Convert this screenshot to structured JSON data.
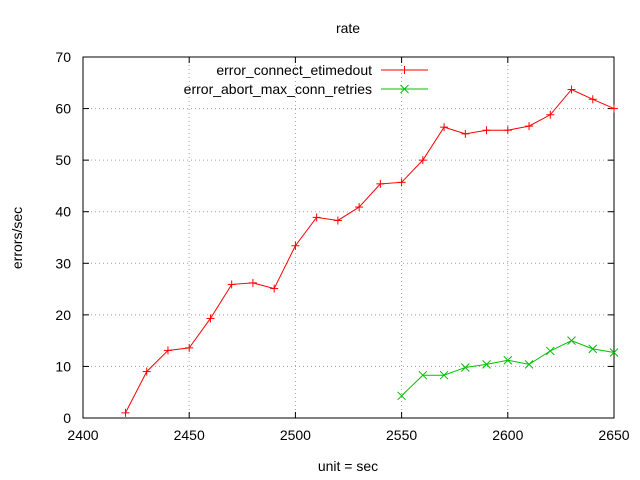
{
  "chart_data": {
    "type": "line",
    "title": "rate",
    "xlabel": "unit = sec",
    "ylabel": "errors/sec",
    "xlim": [
      2400,
      2650
    ],
    "ylim": [
      0,
      70
    ],
    "xticks": [
      2400,
      2450,
      2500,
      2550,
      2600,
      2650
    ],
    "yticks": [
      0,
      10,
      20,
      30,
      40,
      50,
      60,
      70
    ],
    "grid": true,
    "legend_position": "top-right",
    "series": [
      {
        "name": "error_connect_etimedout",
        "color": "#ff0000",
        "marker": "plus",
        "x": [
          2420,
          2430,
          2440,
          2450,
          2460,
          2470,
          2480,
          2490,
          2500,
          2510,
          2520,
          2530,
          2540,
          2550,
          2560,
          2570,
          2580,
          2590,
          2600,
          2610,
          2620,
          2630,
          2640,
          2650
        ],
        "y": [
          1.0,
          9.0,
          13.1,
          13.6,
          19.3,
          25.9,
          26.2,
          25.1,
          33.4,
          38.9,
          38.3,
          40.9,
          45.4,
          45.7,
          50.0,
          56.4,
          55.1,
          55.8,
          55.8,
          56.6,
          58.8,
          63.7,
          61.8,
          60.0
        ]
      },
      {
        "name": "error_abort_max_conn_retries",
        "color": "#00c000",
        "marker": "cross",
        "x": [
          2550,
          2560,
          2570,
          2580,
          2590,
          2600,
          2610,
          2620,
          2630,
          2640,
          2650
        ],
        "y": [
          4.3,
          8.3,
          8.3,
          9.8,
          10.4,
          11.2,
          10.4,
          13.0,
          15.0,
          13.4,
          12.7
        ]
      }
    ]
  }
}
